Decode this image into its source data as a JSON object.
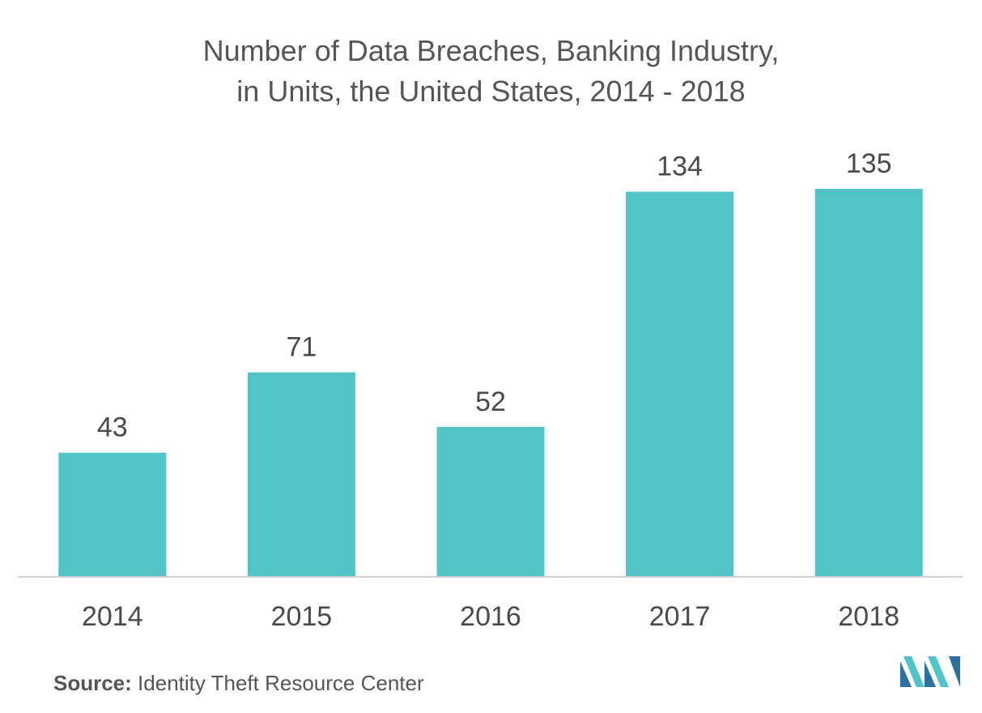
{
  "title": {
    "line1": "Number of Data Breaches, Banking Industry,",
    "line2": "in Units, the United States, 2014 - 2018"
  },
  "source": {
    "label": "Source:",
    "text": "Identity Theft Resource Center"
  },
  "colors": {
    "bar": "#52c3c9",
    "axis": "#cfcfcf",
    "text": "#4a4a4a"
  },
  "chart_data": {
    "type": "bar",
    "title": "Number of Data Breaches, Banking Industry, in Units, the United States, 2014 - 2018",
    "categories": [
      "2014",
      "2015",
      "2016",
      "2017",
      "2018"
    ],
    "values": [
      43,
      71,
      52,
      134,
      135
    ],
    "xlabel": "",
    "ylabel": "",
    "ylim": [
      0,
      135
    ],
    "grid": false,
    "legend": "none"
  },
  "logo": {
    "icon": "mordor-intelligence-logo"
  }
}
